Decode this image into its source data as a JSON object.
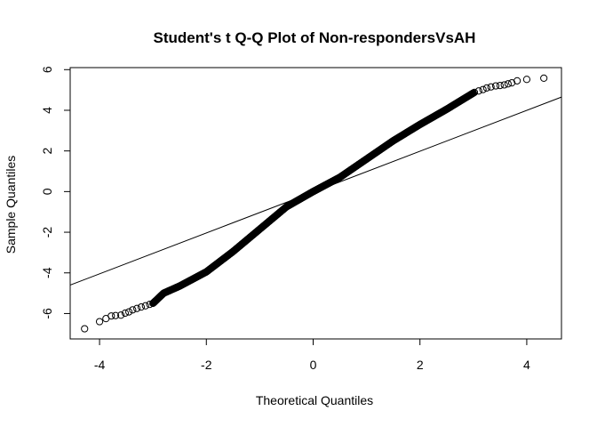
{
  "chart_data": {
    "type": "scatter",
    "title": "Student's t Q-Q Plot of Non-respondersVsAH",
    "xlabel": "Theoretical Quantiles",
    "ylabel": "Sample Quantiles",
    "xlim": [
      -4.55,
      4.65
    ],
    "ylim": [
      -7.25,
      6.1
    ],
    "x_ticks": [
      -4,
      -2,
      0,
      2,
      4
    ],
    "y_ticks": [
      -6,
      -4,
      -2,
      0,
      2,
      4,
      6
    ],
    "grid": false,
    "legend": "none",
    "reference_line": {
      "x1": -4.55,
      "y1": -4.6,
      "x2": 4.65,
      "y2": 4.65
    },
    "tail_points": [
      {
        "x": -4.28,
        "y": -6.75
      },
      {
        "x": -4.0,
        "y": -6.4
      },
      {
        "x": -3.88,
        "y": -6.25
      },
      {
        "x": -3.78,
        "y": -6.12
      },
      {
        "x": -3.7,
        "y": -6.1
      },
      {
        "x": -3.6,
        "y": -6.08
      },
      {
        "x": -3.52,
        "y": -5.98
      },
      {
        "x": -3.45,
        "y": -5.92
      },
      {
        "x": -3.38,
        "y": -5.82
      },
      {
        "x": -3.3,
        "y": -5.75
      },
      {
        "x": -3.22,
        "y": -5.68
      },
      {
        "x": -3.14,
        "y": -5.62
      },
      {
        "x": -3.06,
        "y": -5.55
      },
      {
        "x": 3.02,
        "y": 4.88
      },
      {
        "x": 3.1,
        "y": 4.95
      },
      {
        "x": 3.18,
        "y": 5.02
      },
      {
        "x": 3.25,
        "y": 5.1
      },
      {
        "x": 3.33,
        "y": 5.15
      },
      {
        "x": 3.42,
        "y": 5.2
      },
      {
        "x": 3.5,
        "y": 5.22
      },
      {
        "x": 3.58,
        "y": 5.25
      },
      {
        "x": 3.65,
        "y": 5.3
      },
      {
        "x": 3.72,
        "y": 5.35
      },
      {
        "x": 3.82,
        "y": 5.45
      },
      {
        "x": 4.0,
        "y": 5.52
      },
      {
        "x": 4.32,
        "y": 5.58
      }
    ],
    "body_curve": [
      {
        "x": -3.0,
        "y": -5.5
      },
      {
        "x": -2.8,
        "y": -5.0
      },
      {
        "x": -2.5,
        "y": -4.65
      },
      {
        "x": -2.0,
        "y": -3.95
      },
      {
        "x": -1.5,
        "y": -2.95
      },
      {
        "x": -1.0,
        "y": -1.85
      },
      {
        "x": -0.5,
        "y": -0.75
      },
      {
        "x": 0.0,
        "y": 0.0
      },
      {
        "x": 0.5,
        "y": 0.7
      },
      {
        "x": 1.0,
        "y": 1.6
      },
      {
        "x": 1.5,
        "y": 2.5
      },
      {
        "x": 2.0,
        "y": 3.3
      },
      {
        "x": 2.5,
        "y": 4.05
      },
      {
        "x": 3.0,
        "y": 4.85
      }
    ]
  }
}
